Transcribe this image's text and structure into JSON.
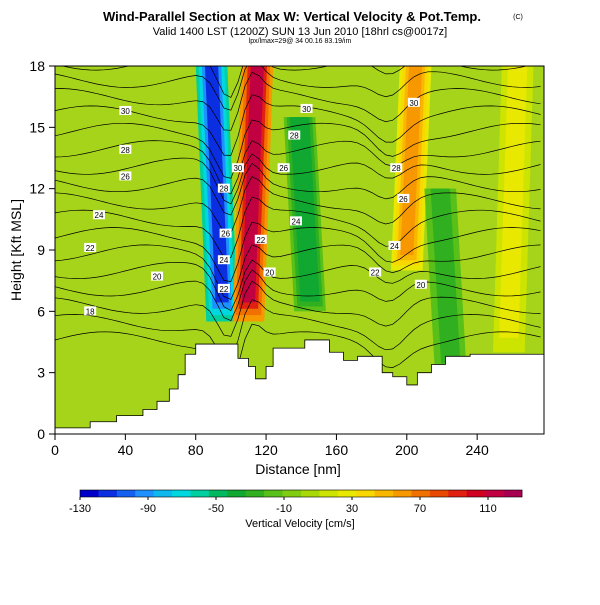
{
  "chart_data": {
    "type": "heatmap",
    "title": "Wind-Parallel Section at Max W: Vertical Velocity & Pot.Temp.",
    "title_mark": "(C)",
    "subtitle": "Valid 1400 LST (1200Z) SUN 13 Jun 2010 [18hrl cs@0017z]",
    "subtitle2": "lpx/lmax=29@ 34 00.16 83.19/im",
    "xlabel": "Distance [nm]",
    "ylabel": "Height [Kft MSL]",
    "xlim": [
      0,
      278
    ],
    "ylim": [
      0,
      18
    ],
    "xticks": [
      0,
      40,
      80,
      120,
      160,
      200,
      240
    ],
    "yticks": [
      0,
      3,
      6,
      9,
      12,
      15,
      18
    ],
    "colorbar": {
      "label": "Vertical Velocity [cm/s]",
      "range": [
        -130,
        130
      ],
      "tick_labels": [
        "-130",
        "-90",
        "-50",
        "-10",
        "30",
        "70",
        "110"
      ],
      "colors": [
        "#0000c8",
        "#0a2ee0",
        "#1460f0",
        "#1e90ff",
        "#10b8f0",
        "#00d8e0",
        "#00d0a0",
        "#00b860",
        "#10a830",
        "#30b020",
        "#58c018",
        "#80cc10",
        "#a8d808",
        "#cce400",
        "#e8e800",
        "#f8d800",
        "#f8b800",
        "#f89800",
        "#f07000",
        "#e84800",
        "#e02010",
        "#d00020",
        "#c00040",
        "#a80050"
      ]
    },
    "velocity_features": [
      {
        "name": "downdraft core",
        "x": 95,
        "ymin": 5.5,
        "ymax": 18,
        "value": -110
      },
      {
        "name": "updraft core",
        "x": 110,
        "ymin": 5.5,
        "ymax": 18,
        "value": 110
      },
      {
        "name": "downdraft band",
        "x": 145,
        "ymin": 6,
        "ymax": 15.5,
        "value": -40
      },
      {
        "name": "updraft band",
        "x": 200,
        "ymin": 8,
        "ymax": 18,
        "value": 55
      },
      {
        "name": "downdraft band",
        "x": 225,
        "ymin": 3,
        "ymax": 12,
        "value": -30
      },
      {
        "name": "updraft band",
        "x": 258,
        "ymin": 4,
        "ymax": 18,
        "value": 30
      }
    ],
    "theta_contour_labels": [
      {
        "text": "30",
        "x": 40,
        "y": 15.8
      },
      {
        "text": "28",
        "x": 40,
        "y": 13.9
      },
      {
        "text": "26",
        "x": 40,
        "y": 12.6
      },
      {
        "text": "24",
        "x": 25,
        "y": 10.7
      },
      {
        "text": "22",
        "x": 20,
        "y": 9.1
      },
      {
        "text": "20",
        "x": 58,
        "y": 7.7
      },
      {
        "text": "18",
        "x": 20,
        "y": 6.0
      },
      {
        "text": "30",
        "x": 104,
        "y": 13.0
      },
      {
        "text": "28",
        "x": 96,
        "y": 12.0
      },
      {
        "text": "26",
        "x": 97,
        "y": 9.8
      },
      {
        "text": "24",
        "x": 96,
        "y": 8.5
      },
      {
        "text": "22",
        "x": 96,
        "y": 7.1
      },
      {
        "text": "22",
        "x": 117,
        "y": 9.5
      },
      {
        "text": "20",
        "x": 122,
        "y": 7.9
      },
      {
        "text": "30",
        "x": 143,
        "y": 15.9
      },
      {
        "text": "28",
        "x": 136,
        "y": 14.6
      },
      {
        "text": "26",
        "x": 130,
        "y": 13.0
      },
      {
        "text": "24",
        "x": 137,
        "y": 10.4
      },
      {
        "text": "30",
        "x": 204,
        "y": 16.2
      },
      {
        "text": "28",
        "x": 194,
        "y": 13.0
      },
      {
        "text": "26",
        "x": 198,
        "y": 11.5
      },
      {
        "text": "24",
        "x": 193,
        "y": 9.2
      },
      {
        "text": "22",
        "x": 182,
        "y": 7.9
      },
      {
        "text": "20",
        "x": 208,
        "y": 7.3
      }
    ],
    "terrain": [
      [
        0,
        0.3
      ],
      [
        20,
        0.3
      ],
      [
        20,
        0.6
      ],
      [
        35,
        0.6
      ],
      [
        35,
        0.9
      ],
      [
        50,
        0.9
      ],
      [
        50,
        1.2
      ],
      [
        58,
        1.2
      ],
      [
        58,
        1.6
      ],
      [
        65,
        1.6
      ],
      [
        65,
        2.2
      ],
      [
        70,
        2.2
      ],
      [
        70,
        2.9
      ],
      [
        74,
        2.9
      ],
      [
        74,
        3.9
      ],
      [
        80,
        3.9
      ],
      [
        80,
        4.4
      ],
      [
        104,
        4.4
      ],
      [
        104,
        3.7
      ],
      [
        110,
        3.7
      ],
      [
        110,
        3.3
      ],
      [
        114,
        3.3
      ],
      [
        114,
        2.7
      ],
      [
        120,
        2.7
      ],
      [
        120,
        3.3
      ],
      [
        124,
        3.3
      ],
      [
        124,
        4.2
      ],
      [
        142,
        4.2
      ],
      [
        142,
        4.6
      ],
      [
        156,
        4.6
      ],
      [
        156,
        4.0
      ],
      [
        164,
        4.0
      ],
      [
        164,
        3.6
      ],
      [
        172,
        3.6
      ],
      [
        172,
        3.8
      ],
      [
        186,
        3.8
      ],
      [
        186,
        3.0
      ],
      [
        192,
        3.0
      ],
      [
        192,
        2.8
      ],
      [
        200,
        2.8
      ],
      [
        200,
        2.4
      ],
      [
        206,
        2.4
      ],
      [
        206,
        3.0
      ],
      [
        214,
        3.0
      ],
      [
        214,
        3.4
      ],
      [
        222,
        3.4
      ],
      [
        222,
        3.8
      ],
      [
        236,
        3.8
      ],
      [
        236,
        3.9
      ],
      [
        278,
        3.9
      ]
    ]
  }
}
